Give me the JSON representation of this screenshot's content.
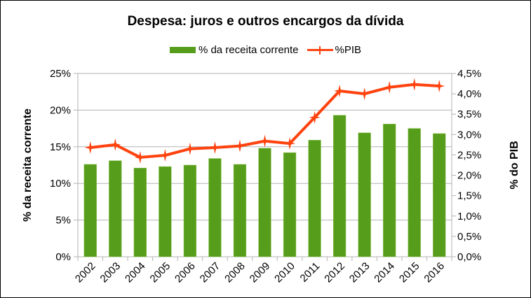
{
  "chart_data": {
    "type": "bar",
    "title": "Despesa: juros e outros encargos da dívida",
    "categories": [
      "2002",
      "2003",
      "2004",
      "2005",
      "2006",
      "2007",
      "2008",
      "2009",
      "2010",
      "2011",
      "2012",
      "2013",
      "2014",
      "2015",
      "2016"
    ],
    "series": [
      {
        "name": "% da receita corrente",
        "type": "bar",
        "axis": "left",
        "color": "#579d1c",
        "values": [
          12.6,
          13.1,
          12.1,
          12.3,
          12.5,
          13.4,
          12.6,
          14.8,
          14.2,
          15.9,
          19.3,
          16.9,
          18.1,
          17.5,
          16.8
        ]
      },
      {
        "name": "%PIB",
        "type": "line",
        "axis": "right",
        "color": "#ff420e",
        "values": [
          2.68,
          2.75,
          2.44,
          2.49,
          2.65,
          2.68,
          2.72,
          2.84,
          2.78,
          3.42,
          4.07,
          4.0,
          4.16,
          4.23,
          4.19
        ]
      }
    ],
    "ylabel": "% da receita corrente",
    "y2label": "% do PIB",
    "ylim": [
      0,
      25
    ],
    "y2lim": [
      0,
      4.5
    ],
    "yticks": [
      "0%",
      "5%",
      "10%",
      "15%",
      "20%",
      "25%"
    ],
    "y2ticks": [
      "0,0%",
      "0,5%",
      "1,0%",
      "1,5%",
      "2,0%",
      "2,5%",
      "3,0%",
      "3,5%",
      "4,0%",
      "4,5%"
    ],
    "grid": true,
    "legend_position": "top"
  }
}
